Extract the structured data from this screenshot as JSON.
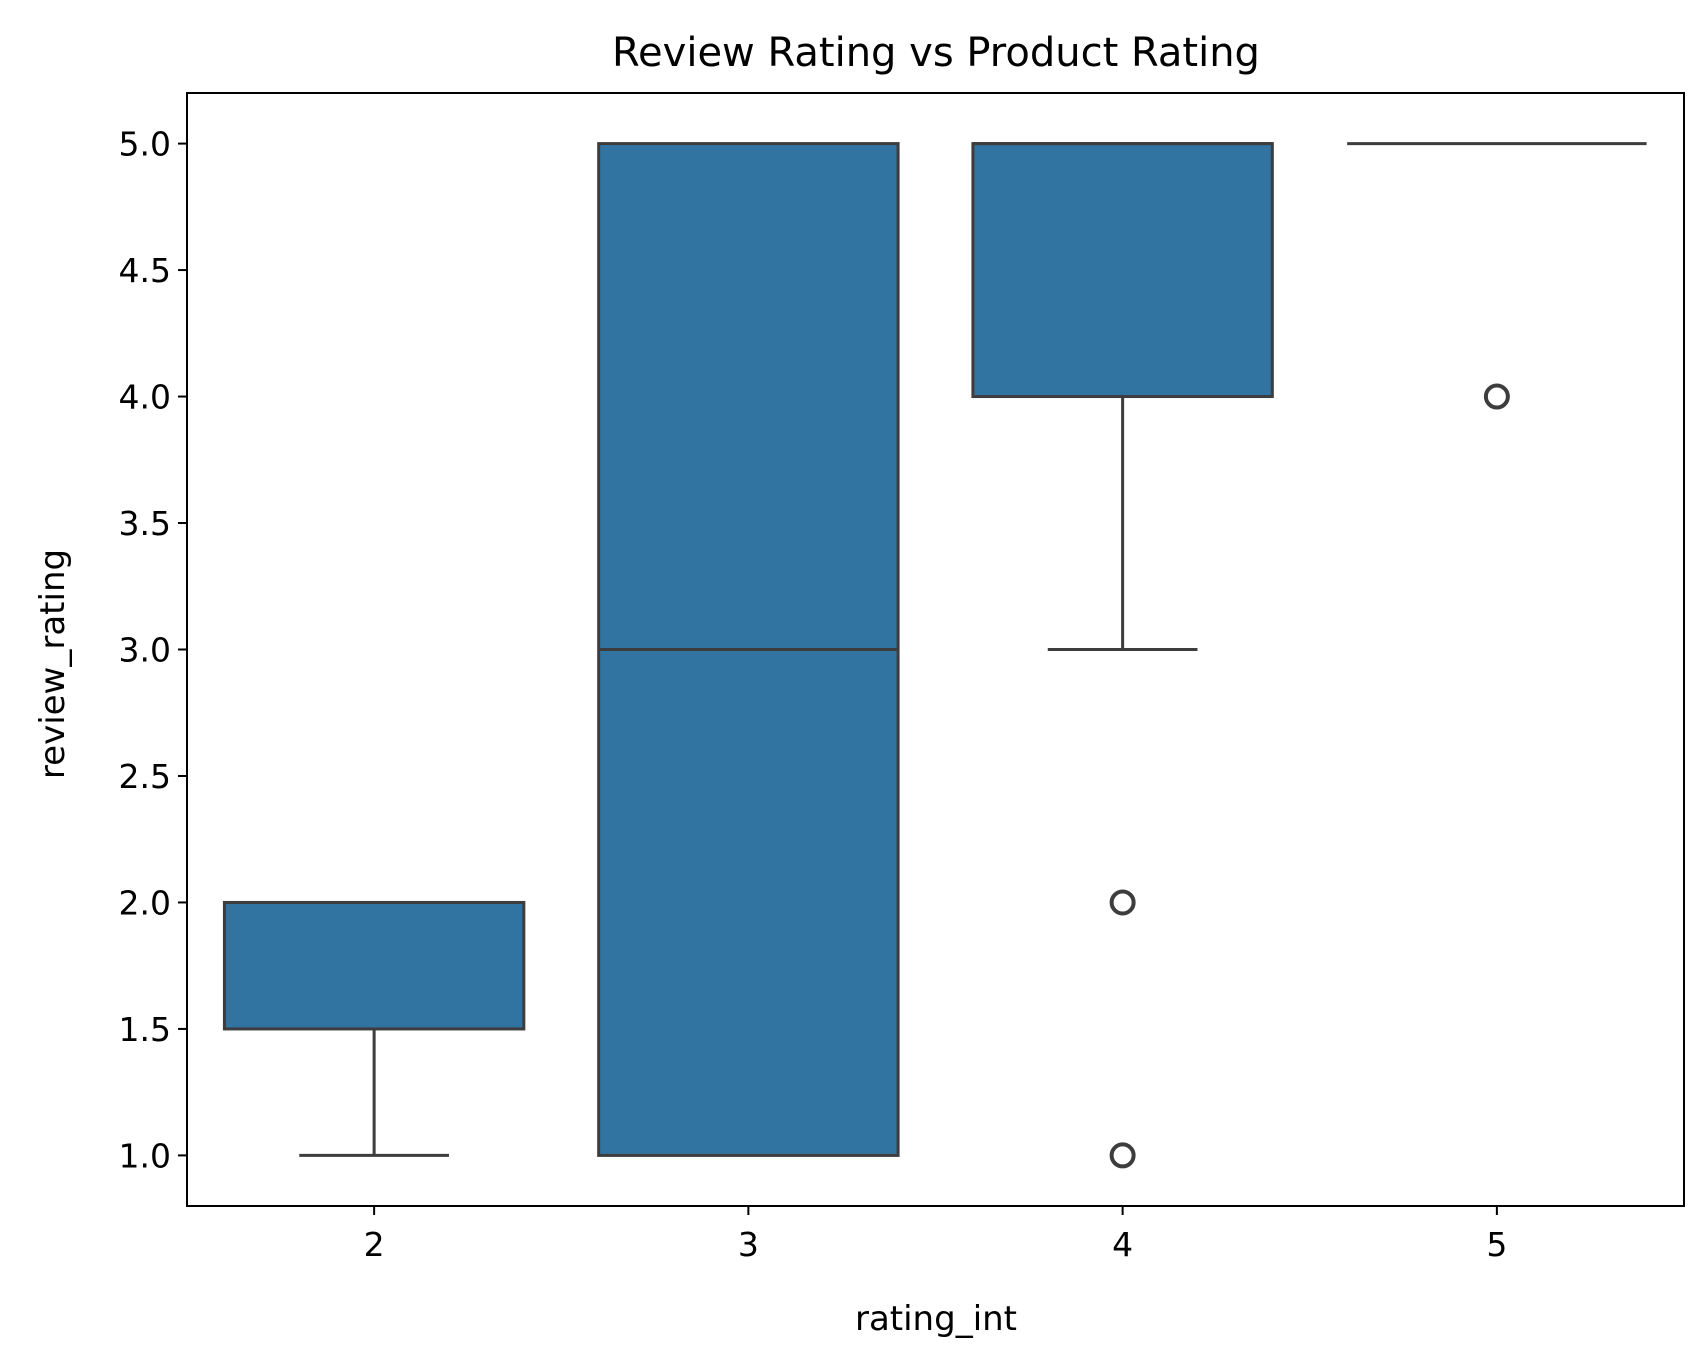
{
  "chart_data": {
    "type": "box",
    "title": "Review Rating vs Product Rating",
    "xlabel": "rating_int",
    "ylabel": "review_rating",
    "categories": [
      "2",
      "3",
      "4",
      "5"
    ],
    "ylim": [
      0.8,
      5.2
    ],
    "yticks": [
      1.0,
      1.5,
      2.0,
      2.5,
      3.0,
      3.5,
      4.0,
      4.5,
      5.0
    ],
    "ytick_labels": [
      "1.0",
      "1.5",
      "2.0",
      "2.5",
      "3.0",
      "3.5",
      "4.0",
      "4.5",
      "5.0"
    ],
    "grid": false,
    "legend": "none",
    "box_color": "#3274a1",
    "line_color": "#3d3d3d",
    "boxes": [
      {
        "category": "2",
        "whisker_low": 1.0,
        "q1": 1.5,
        "median": 2.0,
        "q3": 2.0,
        "whisker_high": 2.0,
        "outliers": []
      },
      {
        "category": "3",
        "whisker_low": 1.0,
        "q1": 1.0,
        "median": 3.0,
        "q3": 5.0,
        "whisker_high": 5.0,
        "outliers": []
      },
      {
        "category": "4",
        "whisker_low": 3.0,
        "q1": 4.0,
        "median": 5.0,
        "q3": 5.0,
        "whisker_high": 5.0,
        "outliers": [
          2.0,
          1.0
        ]
      },
      {
        "category": "5",
        "whisker_low": 5.0,
        "q1": 5.0,
        "median": 5.0,
        "q3": 5.0,
        "whisker_high": 5.0,
        "outliers": [
          4.0
        ]
      }
    ]
  }
}
